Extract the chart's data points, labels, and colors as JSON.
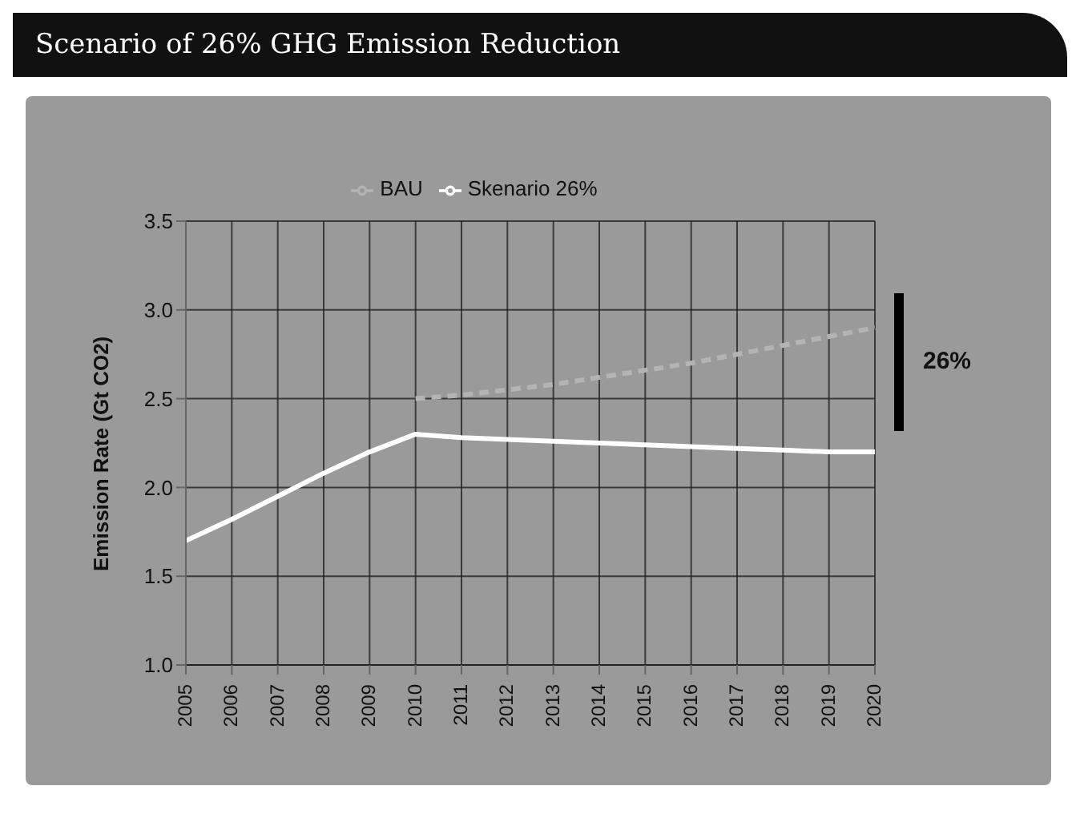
{
  "chart_data": {
    "type": "line",
    "title": "Scenario of 26% GHG Emission Reduction",
    "ylabel": "Emission Rate (Gt CO2)",
    "categories": [
      "2005",
      "2006",
      "2007",
      "2008",
      "2009",
      "2010",
      "2011",
      "2012",
      "2013",
      "2014",
      "2015",
      "2016",
      "2017",
      "2018",
      "2019",
      "2020"
    ],
    "series": [
      {
        "name": "BAU",
        "color": "#b4b4b4",
        "line_style": "dashed",
        "values": [
          null,
          null,
          null,
          null,
          null,
          2.5,
          2.52,
          2.55,
          2.58,
          2.62,
          2.66,
          2.7,
          2.75,
          2.8,
          2.85,
          2.9
        ]
      },
      {
        "name": "Skenario 26%",
        "color": "#ffffff",
        "values": [
          1.7,
          1.82,
          1.95,
          2.08,
          2.2,
          2.3,
          2.28,
          2.27,
          2.26,
          2.25,
          2.24,
          2.23,
          2.22,
          2.21,
          2.2,
          2.2
        ]
      }
    ],
    "ylim": [
      1.0,
      3.5
    ],
    "yticks": [
      {
        "value": 1,
        "label": "1.0"
      },
      {
        "value": 1.5,
        "label": "1.5"
      },
      {
        "value": 2,
        "label": "2.0"
      },
      {
        "value": 2.5,
        "label": "2.5"
      },
      {
        "value": 3,
        "label": "3.0"
      },
      {
        "value": 3.5,
        "label": "3.5"
      }
    ],
    "grid": true,
    "legend": "top",
    "marker": "none",
    "annotations": [
      "26%"
    ]
  }
}
